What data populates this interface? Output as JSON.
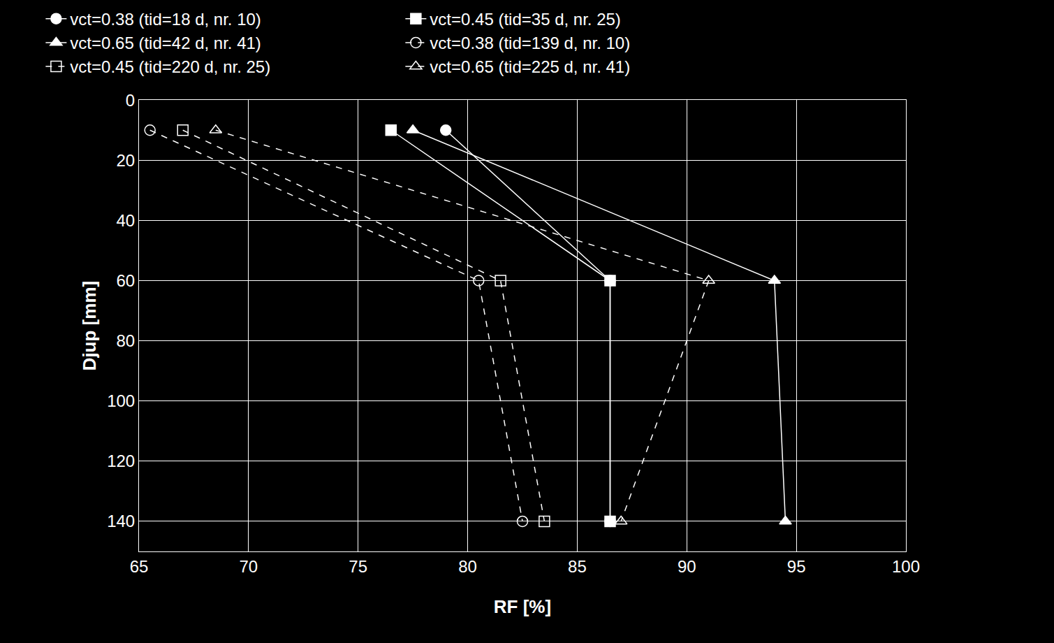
{
  "chart_data": {
    "type": "line",
    "x_label": "RF [%]",
    "y_label": "Djup [mm]",
    "xlim": [
      65,
      100
    ],
    "xticks": [
      65,
      70,
      75,
      80,
      85,
      90,
      95,
      100
    ],
    "ylim": [
      150,
      0
    ],
    "yticks": [
      0,
      20,
      40,
      60,
      80,
      100,
      120,
      140
    ],
    "grid": true,
    "legend": "top",
    "series": [
      {
        "name": "vct=0.38 (tid=18 d, nr. 10)",
        "color": "#ffffff",
        "marker": "circle",
        "line_style": "solid",
        "x": [
          79,
          86.5,
          86.5
        ],
        "values": [
          10,
          60,
          140
        ]
      },
      {
        "name": "vct=0.45 (tid=35 d, nr. 25)",
        "color": "#ffffff",
        "marker": "square",
        "line_style": "solid",
        "x": [
          76.5,
          86.5,
          86.5
        ],
        "values": [
          10,
          60,
          140
        ]
      },
      {
        "name": "vct=0.65 (tid=42 d, nr. 41)",
        "color": "#ffffff",
        "marker": "triangle-up",
        "line_style": "solid",
        "x": [
          77.5,
          94,
          94.5
        ],
        "values": [
          10,
          60,
          140
        ]
      },
      {
        "name": "vct=0.38 (tid=139 d, nr. 10)",
        "color": "#ffffff",
        "marker": "circle-open",
        "line_style": "dash",
        "x": [
          65.5,
          80.5,
          82.5
        ],
        "values": [
          10,
          60,
          140
        ]
      },
      {
        "name": "vct=0.45 (tid=220 d, nr. 25)",
        "color": "#ffffff",
        "marker": "square-open",
        "line_style": "dash",
        "x": [
          67,
          81.5,
          83.5
        ],
        "values": [
          10,
          60,
          140
        ]
      },
      {
        "name": "vct=0.65 (tid=225 d, nr. 41)",
        "color": "#ffffff",
        "marker": "triangle-up-open",
        "line_style": "dash",
        "x": [
          68.5,
          91,
          87
        ],
        "values": [
          10,
          60,
          140
        ]
      }
    ]
  }
}
